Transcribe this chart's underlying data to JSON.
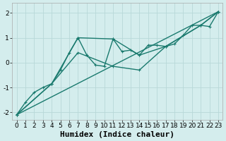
{
  "xlabel": "Humidex (Indice chaleur)",
  "bg_color": "#d4eded",
  "grid_color": "#b8d8d8",
  "line_color": "#1a7a6e",
  "xlim": [
    -0.5,
    23.5
  ],
  "ylim": [
    -2.3,
    2.4
  ],
  "xticks": [
    0,
    1,
    2,
    3,
    4,
    5,
    6,
    7,
    8,
    9,
    10,
    11,
    12,
    13,
    14,
    15,
    16,
    17,
    18,
    19,
    20,
    21,
    22,
    23
  ],
  "yticks": [
    -2,
    -1,
    0,
    1,
    2
  ],
  "series1_x": [
    0,
    1,
    2,
    3,
    4,
    5,
    6,
    7,
    8,
    9,
    10,
    11,
    12,
    13,
    14,
    15,
    16,
    17,
    18,
    19,
    20,
    21,
    22,
    23
  ],
  "series1_y": [
    -2.1,
    -1.6,
    -1.2,
    -1.0,
    -0.85,
    -0.3,
    0.4,
    1.0,
    0.3,
    -0.1,
    -0.15,
    0.95,
    0.45,
    0.5,
    0.3,
    0.7,
    0.7,
    0.65,
    0.75,
    1.1,
    1.5,
    1.5,
    1.45,
    2.05
  ],
  "series2_x": [
    0,
    4,
    7,
    11,
    14,
    17,
    21,
    23
  ],
  "series2_y": [
    -2.1,
    -0.85,
    1.0,
    0.95,
    0.3,
    0.65,
    1.5,
    2.05
  ],
  "series3_x": [
    0,
    4,
    7,
    11,
    14,
    17,
    21,
    23
  ],
  "series3_y": [
    -2.1,
    -0.85,
    0.4,
    -0.15,
    -0.3,
    0.65,
    1.5,
    2.05
  ],
  "trend_x": [
    0,
    23
  ],
  "trend_y": [
    -2.1,
    2.05
  ],
  "markersize": 3,
  "linewidth": 1.0,
  "xlabel_fontsize": 8,
  "tick_fontsize": 6.5
}
